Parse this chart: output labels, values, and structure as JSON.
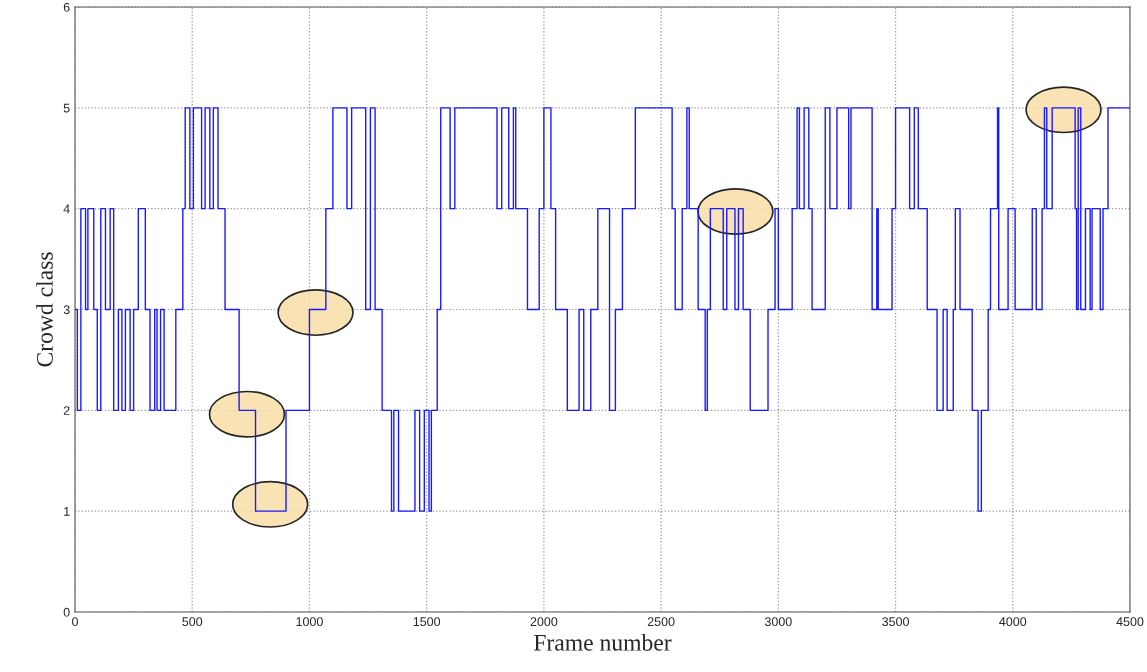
{
  "chart_data": {
    "type": "step",
    "xlabel": "Frame number",
    "ylabel": "Crowd class",
    "x": [
      0,
      10,
      25,
      45,
      55,
      80,
      95,
      110,
      130,
      150,
      165,
      185,
      200,
      215,
      235,
      250,
      270,
      300,
      320,
      340,
      350,
      365,
      380,
      430,
      460,
      470,
      490,
      505,
      540,
      555,
      575,
      590,
      610,
      640,
      700,
      770,
      900,
      1000,
      1070,
      1100,
      1160,
      1180,
      1240,
      1260,
      1280,
      1310,
      1350,
      1360,
      1380,
      1450,
      1470,
      1490,
      1510,
      1520,
      1545,
      1560,
      1600,
      1620,
      1800,
      1820,
      1850,
      1870,
      1880,
      1930,
      1980,
      2000,
      2030,
      2050,
      2100,
      2150,
      2170,
      2200,
      2230,
      2280,
      2305,
      2335,
      2390,
      2547,
      2560,
      2590,
      2610,
      2620,
      2658,
      2688,
      2697,
      2710,
      2765,
      2780,
      2815,
      2830,
      2850,
      2880,
      2956,
      2986,
      3000,
      3059,
      3080,
      3090,
      3110,
      3130,
      3144,
      3200,
      3220,
      3250,
      3300,
      3310,
      3400,
      3420,
      3426,
      3485,
      3500,
      3560,
      3580,
      3597,
      3635,
      3677,
      3703,
      3720,
      3746,
      3755,
      3775,
      3827,
      3852,
      3866,
      3895,
      3905,
      3935,
      3940,
      3980,
      4010,
      4083,
      4100,
      4125,
      4135,
      4145,
      4168,
      4266,
      4272,
      4279,
      4290,
      4310,
      4330,
      4338,
      4373,
      4385,
      4406,
      4437,
      4500
    ],
    "series": [
      {
        "color": "#1a1aff",
        "values": [
          3,
          2,
          4,
          3,
          4,
          3,
          2,
          4,
          3,
          4,
          2,
          3,
          2,
          3,
          2,
          3,
          4,
          3,
          2,
          3,
          2,
          3,
          2,
          3,
          4,
          5,
          4,
          5,
          4,
          5,
          4,
          5,
          4,
          3,
          2,
          1,
          2,
          3,
          4,
          5,
          4,
          5,
          3,
          5,
          3,
          2,
          1,
          2,
          1,
          2,
          1,
          2,
          1,
          2,
          3,
          5,
          4,
          5,
          4,
          5,
          4,
          5,
          4,
          3,
          4,
          5,
          4,
          3,
          2,
          3,
          2,
          3,
          4,
          2,
          3,
          4,
          5,
          4,
          3,
          4,
          5,
          4,
          3,
          2,
          3,
          4,
          3,
          4,
          3,
          4,
          3,
          2,
          3,
          4,
          3,
          4,
          5,
          4,
          5,
          4,
          3,
          5,
          4,
          5,
          4,
          5,
          3,
          4,
          3,
          4,
          5,
          4,
          5,
          4,
          3,
          2,
          3,
          2,
          3,
          4,
          3,
          2,
          1,
          2,
          3,
          4,
          5,
          3,
          4,
          3,
          4,
          3,
          4,
          5,
          4,
          5,
          4,
          3,
          5,
          3,
          4,
          3,
          4,
          3,
          4,
          5,
          5,
          5
        ]
      }
    ],
    "xlim": [
      0,
      4500
    ],
    "ylim": [
      0,
      6
    ],
    "xticks": [
      0,
      500,
      1000,
      1500,
      2000,
      2500,
      3000,
      3500,
      4000,
      4500
    ],
    "yticks": [
      0,
      1,
      2,
      3,
      4,
      5,
      6
    ],
    "grid": true,
    "line_style": "solid"
  }
}
